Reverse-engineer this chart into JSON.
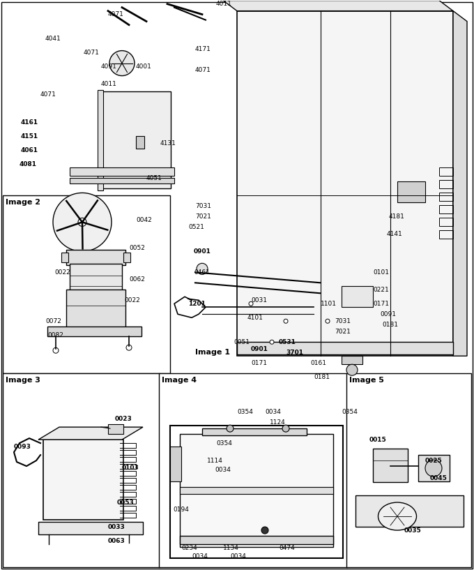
{
  "background": "#ffffff",
  "border_color": "#000000",
  "image_labels": {
    "image1": "Image 1",
    "image2": "Image 2",
    "image3": "Image 3",
    "image4": "Image 4",
    "image5": "Image 5"
  },
  "image1_parts": [
    [
      "4071",
      155,
      20
    ],
    [
      "4011",
      310,
      5
    ],
    [
      "4041",
      65,
      55
    ],
    [
      "4071",
      120,
      75
    ],
    [
      "4171",
      280,
      70
    ],
    [
      "4091",
      145,
      95
    ],
    [
      "4001",
      195,
      95
    ],
    [
      "4071",
      280,
      100
    ],
    [
      "4071",
      58,
      135
    ],
    [
      "4011",
      145,
      120
    ],
    [
      "4161",
      30,
      175
    ],
    [
      "4151",
      30,
      195
    ],
    [
      "4061",
      30,
      215
    ],
    [
      "4081",
      28,
      235
    ],
    [
      "4131",
      230,
      205
    ],
    [
      "4051",
      210,
      255
    ],
    [
      "7031",
      280,
      295
    ],
    [
      "7021",
      280,
      310
    ],
    [
      "0521",
      270,
      325
    ],
    [
      "0901",
      278,
      360
    ],
    [
      "0461",
      278,
      390
    ],
    [
      "1201",
      270,
      435
    ],
    [
      "0031",
      360,
      430
    ],
    [
      "4101",
      355,
      455
    ],
    [
      "0051",
      335,
      490
    ],
    [
      "0901",
      360,
      500
    ],
    [
      "0171",
      360,
      520
    ],
    [
      "0531",
      400,
      490
    ],
    [
      "3701",
      410,
      505
    ],
    [
      "0161",
      445,
      520
    ],
    [
      "0181",
      450,
      540
    ],
    [
      "1101",
      460,
      435
    ],
    [
      "7031",
      480,
      460
    ],
    [
      "7021",
      480,
      475
    ],
    [
      "0101",
      535,
      390
    ],
    [
      "0221",
      535,
      415
    ],
    [
      "0171",
      535,
      435
    ],
    [
      "0091",
      545,
      450
    ],
    [
      "0181",
      548,
      465
    ],
    [
      "4181",
      558,
      310
    ],
    [
      "4141",
      555,
      335
    ]
  ],
  "image2_parts": [
    [
      "0042",
      195,
      315
    ],
    [
      "0052",
      185,
      355
    ],
    [
      "0022",
      78,
      390
    ],
    [
      "0062",
      185,
      400
    ],
    [
      "0022",
      178,
      430
    ],
    [
      "0072",
      65,
      460
    ],
    [
      "0082",
      68,
      480
    ]
  ],
  "image3_parts": [
    [
      "0023",
      165,
      600
    ],
    [
      "0093",
      20,
      640
    ],
    [
      "0103",
      175,
      670
    ],
    [
      "0053",
      168,
      720
    ],
    [
      "0033",
      155,
      755
    ],
    [
      "0063",
      155,
      775
    ]
  ],
  "image4_parts": [
    [
      "0034",
      380,
      590
    ],
    [
      "1124",
      387,
      605
    ],
    [
      "0354",
      340,
      590
    ],
    [
      "0354",
      490,
      590
    ],
    [
      "0354",
      310,
      635
    ],
    [
      "1114",
      297,
      660
    ],
    [
      "0034",
      308,
      673
    ],
    [
      "0194",
      248,
      730
    ],
    [
      "0234",
      260,
      785
    ],
    [
      "0034",
      275,
      797
    ],
    [
      "1134",
      320,
      785
    ],
    [
      "0034",
      330,
      797
    ],
    [
      "0474",
      400,
      785
    ]
  ],
  "image5_parts": [
    [
      "0015",
      530,
      630
    ],
    [
      "0025",
      610,
      660
    ],
    [
      "0045",
      617,
      685
    ],
    [
      "0035",
      580,
      760
    ]
  ],
  "bold_parts": [
    "4161",
    "4151",
    "4061",
    "4081",
    "0901",
    "1201",
    "0531",
    "3701",
    "0023",
    "0093",
    "0103",
    "0053",
    "0033",
    "0063",
    "0015",
    "0025",
    "0045",
    "0035"
  ]
}
